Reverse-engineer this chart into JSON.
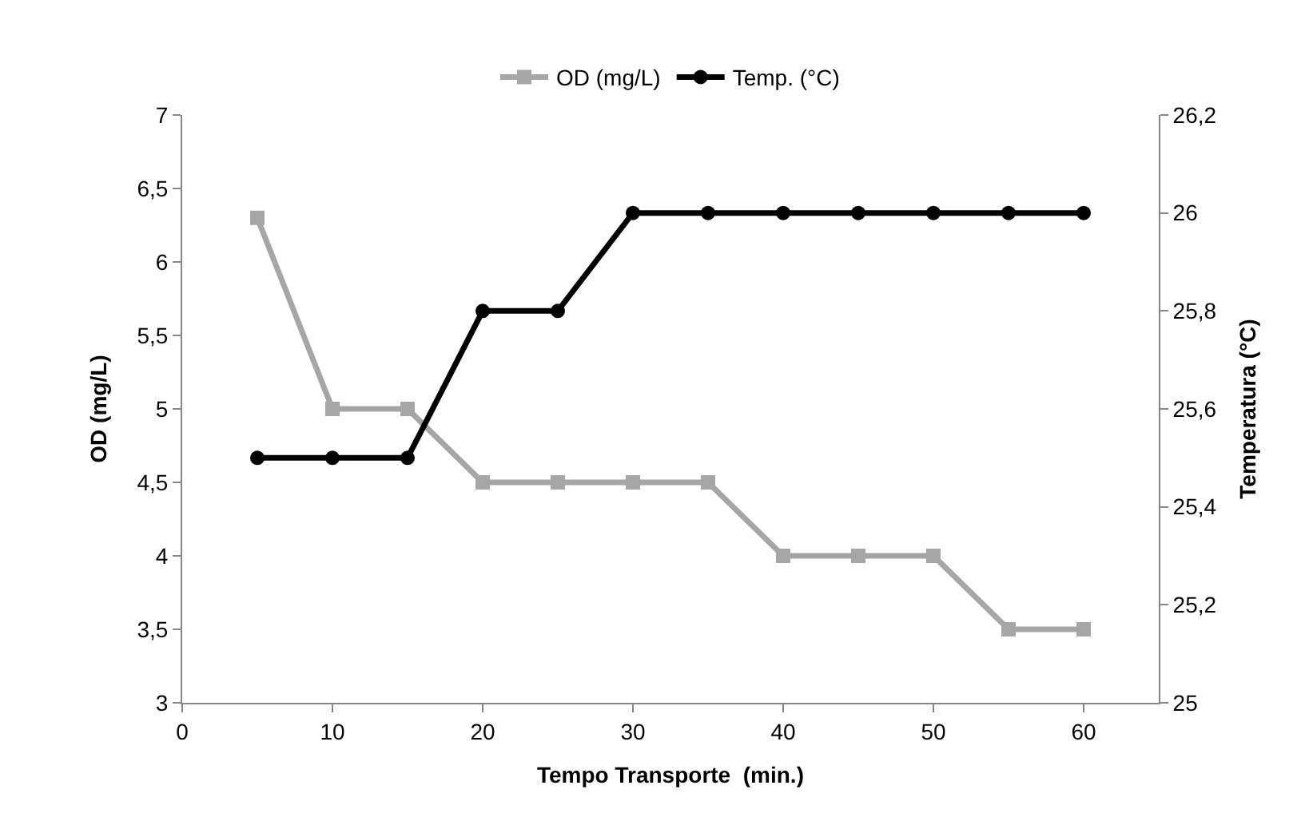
{
  "chart_data": {
    "type": "line",
    "xlabel": "Tempo Transporte  (min.)",
    "ylabel": "OD (mg/L)",
    "y2label": "Temperatura (°C)",
    "x": [
      5,
      10,
      15,
      20,
      25,
      30,
      35,
      40,
      45,
      50,
      55,
      60
    ],
    "series": [
      {
        "name": "OD (mg/L)",
        "color": "#a6a6a6",
        "marker": "square",
        "values": [
          6.3,
          5,
          5,
          4.5,
          4.5,
          4.5,
          4.5,
          4,
          4,
          4,
          3.5,
          3.5
        ]
      },
      {
        "name": "Temp. (°C)",
        "color": "#000000",
        "marker": "circle",
        "axis": "y2",
        "values": [
          25.5,
          25.5,
          25.5,
          25.8,
          25.8,
          26,
          26,
          26,
          26,
          26,
          26,
          26
        ]
      }
    ],
    "xlim": [
      0,
      65
    ],
    "xticks": [
      0,
      10,
      20,
      30,
      40,
      50,
      60
    ],
    "ylim": [
      3,
      7
    ],
    "yticks": [
      3,
      {
        "value": 3.5,
        "label": "3,5"
      },
      4,
      {
        "value": 4.5,
        "label": "4,5"
      },
      5,
      {
        "value": 5.5,
        "label": "5,5"
      },
      6,
      {
        "value": 6.5,
        "label": "6,5"
      },
      7
    ],
    "y2lim": [
      25,
      26.2
    ],
    "y2ticks": [
      25,
      {
        "value": 25.2,
        "label": "25,2"
      },
      {
        "value": 25.4,
        "label": "25,4"
      },
      {
        "value": 25.6,
        "label": "25,6"
      },
      {
        "value": 25.8,
        "label": "25,8"
      },
      26,
      {
        "value": 26.2,
        "label": "26,2"
      }
    ],
    "legend": "top",
    "line_style": "solid"
  }
}
